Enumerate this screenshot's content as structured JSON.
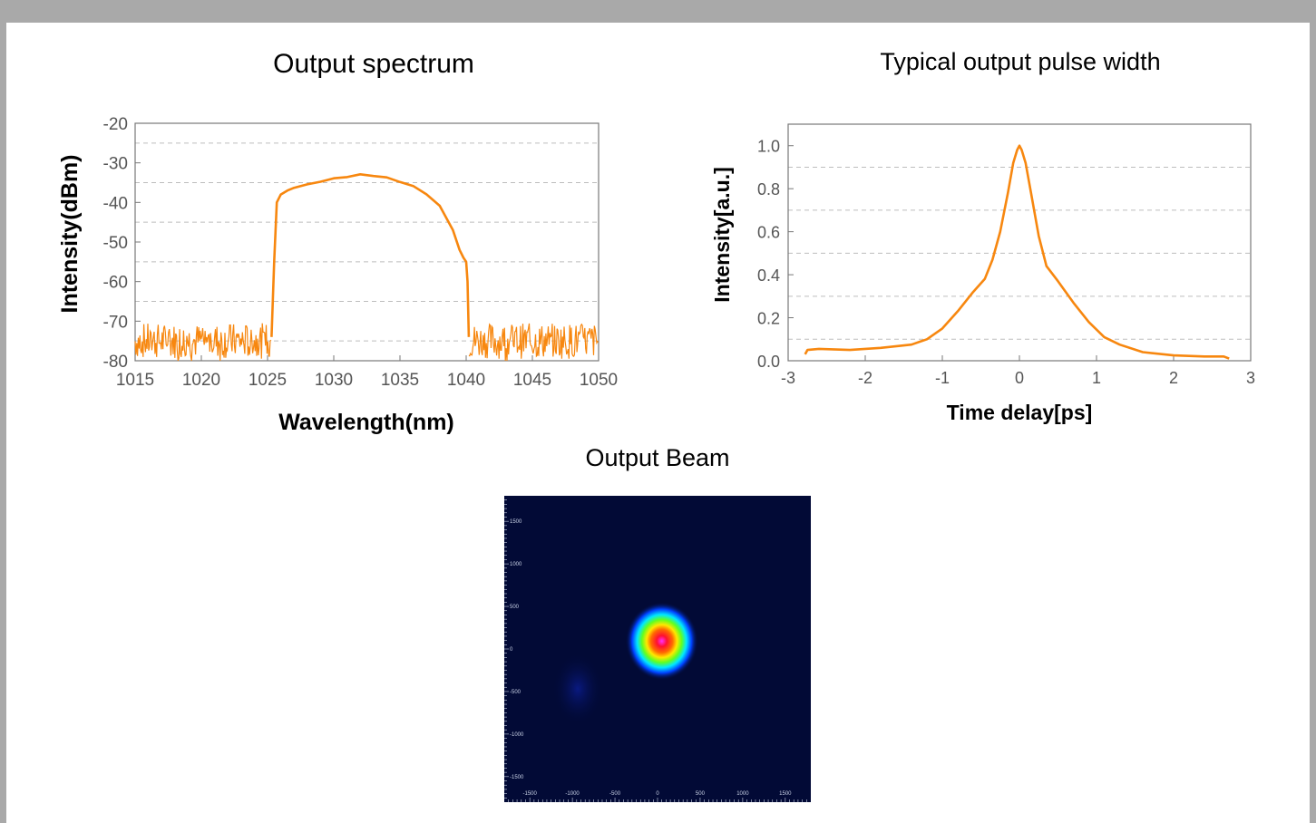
{
  "chart_data": [
    {
      "type": "line",
      "title": "Output spectrum",
      "xlabel": "Wavelength(nm)",
      "ylabel": "Intensity(dBm)",
      "xlim": [
        1015,
        1050
      ],
      "ylim": [
        -80,
        -20
      ],
      "xticks": [
        1015,
        1020,
        1025,
        1030,
        1035,
        1040,
        1045,
        1050
      ],
      "yticks": [
        -20,
        -30,
        -40,
        -50,
        -60,
        -70,
        -80
      ],
      "grid": "horizontal dashed",
      "color": "#f7870f",
      "series": [
        {
          "x": [
            1015,
            1025.3,
            1025.5,
            1025.7,
            1026,
            1026.5,
            1027,
            1028,
            1029,
            1030,
            1031,
            1032,
            1033,
            1034,
            1035,
            1036,
            1037,
            1038,
            1039,
            1039.5,
            1039.8,
            1040,
            1040.1,
            1040.2,
            1050
          ],
          "y": [
            -75,
            -74,
            -55,
            -40,
            -38,
            -37,
            -36.3,
            -35.5,
            -34.7,
            -34,
            -33.5,
            -33,
            -33.2,
            -33.8,
            -34.7,
            -36,
            -37.8,
            -41,
            -47,
            -52,
            -54,
            -55,
            -60,
            -74,
            -75
          ]
        }
      ]
    },
    {
      "type": "line",
      "title": "Typical output pulse width",
      "xlabel": "Time delay[ps]",
      "ylabel": "Intensity[a.u.]",
      "xlim": [
        -3,
        3
      ],
      "ylim": [
        0,
        1.1
      ],
      "xticks": [
        -3,
        -2,
        -1,
        0,
        1,
        2,
        3
      ],
      "yticks": [
        "0.0",
        "0.2",
        "0.4",
        "0.6",
        "0.8",
        "1.0"
      ],
      "grid": "horizontal dashed",
      "color": "#f7870f",
      "series": [
        {
          "x": [
            -2.78,
            -2.75,
            -2.6,
            -2.2,
            -1.8,
            -1.4,
            -1.2,
            -1.0,
            -0.8,
            -0.6,
            -0.45,
            -0.35,
            -0.25,
            -0.15,
            -0.08,
            -0.03,
            0,
            0.03,
            0.08,
            0.15,
            0.25,
            0.35,
            0.5,
            0.7,
            0.9,
            1.1,
            1.3,
            1.6,
            2.0,
            2.4,
            2.65,
            2.72
          ],
          "y": [
            0.03,
            0.05,
            0.055,
            0.05,
            0.06,
            0.075,
            0.1,
            0.15,
            0.23,
            0.32,
            0.38,
            0.47,
            0.6,
            0.78,
            0.92,
            0.98,
            1.0,
            0.98,
            0.92,
            0.78,
            0.58,
            0.44,
            0.37,
            0.27,
            0.18,
            0.11,
            0.075,
            0.04,
            0.025,
            0.02,
            0.02,
            0.01
          ]
        }
      ]
    },
    {
      "type": "heatmap",
      "title": "Output Beam",
      "xlim": [
        -1800,
        1800
      ],
      "ylim": [
        -1800,
        1800
      ],
      "xticks": [
        "-1500",
        "-1000",
        "-500",
        "0",
        "500",
        "1000",
        "1500"
      ],
      "yticks": [
        "1500",
        "1000",
        "500",
        "0",
        "-500",
        "-1000",
        "-1500"
      ],
      "beam_center": [
        50,
        50
      ],
      "colormap": [
        "#020a36",
        "#0020ff",
        "#00d0ff",
        "#00ff60",
        "#ffff00",
        "#ff0000",
        "#ff20ff"
      ]
    }
  ]
}
